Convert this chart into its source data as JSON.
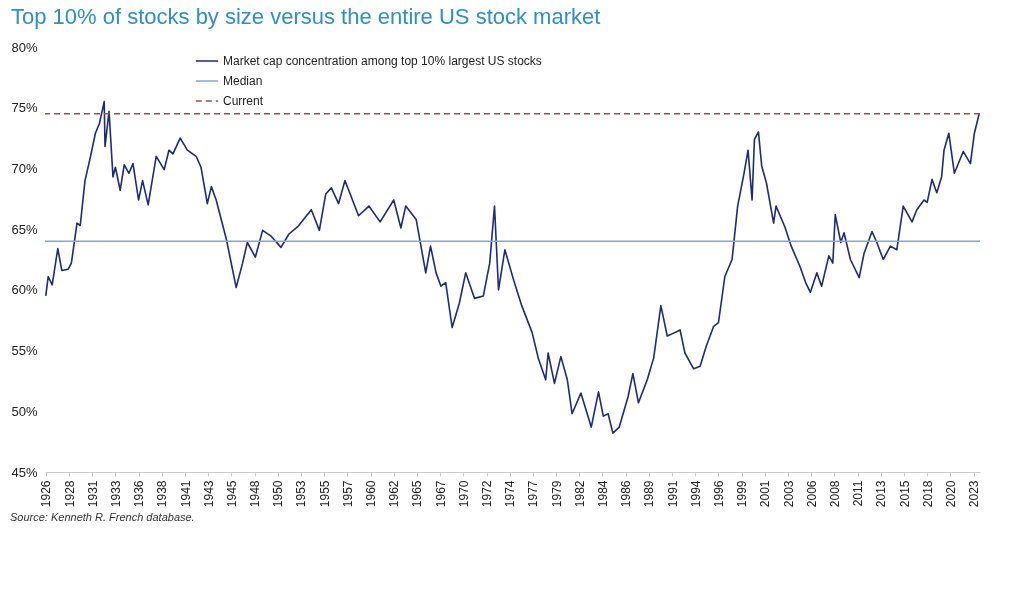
{
  "chart_data": {
    "type": "line",
    "title": "Top 10% of stocks by size versus the entire US stock market",
    "annotations": [
      "Source: Kenneth R. French database."
    ],
    "series": [
      {
        "name": "Market cap concentration among top 10% largest US stocks",
        "color": "#1f2a78",
        "x": [
          "1926-07",
          "1926-10",
          "1927-03",
          "1927-10",
          "1928-03",
          "1928-11",
          "1929-03",
          "1929-10",
          "1930-02",
          "1930-08",
          "1931-03",
          "1931-09",
          "1932-02",
          "1932-08",
          "1932-09",
          "1933-02",
          "1933-07",
          "1933-10",
          "1934-04",
          "1934-09",
          "1935-03",
          "1935-08",
          "1936-03",
          "1936-08",
          "1937-03",
          "1938-01",
          "1938-11",
          "1939-05",
          "1939-10",
          "1940-07",
          "1941-04",
          "1942-03",
          "1942-09",
          "1943-05",
          "1943-10",
          "1944-04",
          "1945-05",
          "1946-05",
          "1947-01",
          "1947-07",
          "1948-05",
          "1949-02",
          "1950-01",
          "1951-01",
          "1951-11",
          "1952-10",
          "1954-03",
          "1955-01",
          "1955-09",
          "1956-04",
          "1957-01",
          "1957-09",
          "1959-02",
          "1960-03",
          "1961-05",
          "1962-10",
          "1963-07",
          "1964-01",
          "1965-02",
          "1966-02",
          "1966-08",
          "1967-03",
          "1967-09",
          "1968-03",
          "1968-11",
          "1969-08",
          "1970-04",
          "1971-03",
          "1972-02",
          "1972-10",
          "1973-04",
          "1973-09",
          "1974-05",
          "1975-04",
          "1976-02",
          "1977-03",
          "1977-11",
          "1978-08",
          "1978-11",
          "1979-07",
          "1980-03",
          "1980-11",
          "1981-05",
          "1982-04",
          "1983-05",
          "1984-02",
          "1984-08",
          "1985-02",
          "1985-08",
          "1986-04",
          "1987-03",
          "1987-09",
          "1988-04",
          "1989-03",
          "1989-11",
          "1990-08",
          "1991-04",
          "1992-02",
          "1992-08",
          "1993-02",
          "1994-01",
          "1994-09",
          "1995-05",
          "1996-02",
          "1996-08",
          "1997-04",
          "1998-01",
          "1998-08",
          "1999-04",
          "1999-09",
          "2000-02",
          "2000-05",
          "2000-10",
          "2001-02",
          "2001-08",
          "2002-05",
          "2002-08",
          "2003-07",
          "2004-03",
          "2005-02",
          "2005-09",
          "2006-03",
          "2006-11",
          "2007-05",
          "2008-02",
          "2008-07",
          "2008-10",
          "2009-05",
          "2009-09",
          "2010-05",
          "2011-04",
          "2011-10",
          "2012-08",
          "2013-02",
          "2013-10",
          "2014-07",
          "2015-03",
          "2015-11",
          "2016-10",
          "2017-04",
          "2018-01",
          "2018-05",
          "2018-11",
          "2019-05",
          "2019-11",
          "2020-02",
          "2020-08",
          "2021-03",
          "2022-02",
          "2022-11",
          "2023-04",
          "2023-10"
        ],
        "values": [
          59.5,
          61.1,
          60.4,
          63.4,
          61.6,
          61.7,
          62.2,
          65.5,
          65.3,
          69.0,
          71.0,
          72.9,
          73.7,
          75.5,
          71.8,
          74.7,
          69.3,
          70.1,
          68.2,
          70.3,
          69.6,
          70.4,
          67.4,
          69.0,
          67.0,
          71.0,
          69.9,
          71.5,
          71.2,
          72.5,
          71.5,
          71.0,
          70.1,
          67.1,
          68.5,
          67.4,
          64.1,
          60.2,
          62.2,
          63.9,
          62.7,
          64.9,
          64.4,
          63.5,
          64.6,
          65.2,
          66.6,
          64.9,
          67.9,
          68.4,
          67.1,
          69.0,
          66.1,
          66.9,
          65.6,
          67.4,
          65.1,
          66.9,
          65.8,
          61.4,
          63.6,
          61.4,
          60.3,
          60.6,
          56.9,
          58.9,
          61.4,
          59.3,
          59.5,
          62.2,
          66.9,
          60.0,
          63.3,
          60.8,
          58.7,
          56.5,
          54.3,
          52.6,
          54.8,
          52.3,
          54.5,
          52.6,
          49.8,
          51.5,
          48.7,
          51.6,
          49.6,
          49.8,
          48.2,
          48.7,
          51.2,
          53.1,
          50.7,
          52.6,
          54.4,
          58.7,
          56.2,
          56.5,
          56.7,
          54.8,
          53.5,
          53.7,
          55.4,
          57.0,
          57.3,
          61.1,
          62.5,
          66.9,
          69.6,
          71.5,
          67.4,
          72.4,
          73.0,
          70.2,
          68.8,
          65.5,
          66.9,
          65.2,
          63.6,
          61.9,
          60.6,
          59.8,
          61.4,
          60.3,
          62.8,
          62.2,
          66.2,
          63.9,
          64.7,
          62.5,
          61.0,
          63.0,
          64.8,
          63.9,
          62.5,
          63.6,
          63.3,
          66.9,
          65.6,
          66.6,
          67.4,
          67.2,
          69.1,
          68.0,
          69.3,
          71.5,
          72.9,
          69.6,
          71.4,
          70.4,
          72.9,
          74.5
        ]
      }
    ],
    "ref_lines": [
      {
        "axis": "y",
        "value": 64,
        "label": "Median",
        "color": "#8ea2d8",
        "line_style": "solid"
      },
      {
        "axis": "y",
        "value": 74.5,
        "label": "Current",
        "color": "#8c5a4c",
        "line_style": "dashed"
      }
    ],
    "xlim": [
      "1926-06",
      "2023-11"
    ],
    "xticks": [
      {
        "value": "1926-07",
        "label": "1926"
      },
      {
        "value": "1928-12",
        "label": "1928"
      },
      {
        "value": "1931-05",
        "label": "1931"
      },
      {
        "value": "1933-10",
        "label": "1933"
      },
      {
        "value": "1936-03",
        "label": "1936"
      },
      {
        "value": "1938-08",
        "label": "1938"
      },
      {
        "value": "1941-01",
        "label": "1941"
      },
      {
        "value": "1943-06",
        "label": "1943"
      },
      {
        "value": "1945-11",
        "label": "1945"
      },
      {
        "value": "1948-04",
        "label": "1948"
      },
      {
        "value": "1950-09",
        "label": "1950"
      },
      {
        "value": "1953-02",
        "label": "1953"
      },
      {
        "value": "1955-07",
        "label": "1955"
      },
      {
        "value": "1957-12",
        "label": "1957"
      },
      {
        "value": "1960-05",
        "label": "1960"
      },
      {
        "value": "1962-10",
        "label": "1962"
      },
      {
        "value": "1965-03",
        "label": "1965"
      },
      {
        "value": "1967-08",
        "label": "1967"
      },
      {
        "value": "1970-01",
        "label": "1970"
      },
      {
        "value": "1972-06",
        "label": "1972"
      },
      {
        "value": "1974-11",
        "label": "1974"
      },
      {
        "value": "1977-04",
        "label": "1977"
      },
      {
        "value": "1979-09",
        "label": "1979"
      },
      {
        "value": "1982-02",
        "label": "1982"
      },
      {
        "value": "1984-07",
        "label": "1984"
      },
      {
        "value": "1986-12",
        "label": "1986"
      },
      {
        "value": "1989-05",
        "label": "1989"
      },
      {
        "value": "1991-10",
        "label": "1991"
      },
      {
        "value": "1994-03",
        "label": "1994"
      },
      {
        "value": "1996-08",
        "label": "1996"
      },
      {
        "value": "1999-01",
        "label": "1999"
      },
      {
        "value": "2001-06",
        "label": "2001"
      },
      {
        "value": "2003-11",
        "label": "2003"
      },
      {
        "value": "2006-04",
        "label": "2006"
      },
      {
        "value": "2008-09",
        "label": "2008"
      },
      {
        "value": "2011-02",
        "label": "2011"
      },
      {
        "value": "2013-07",
        "label": "2013"
      },
      {
        "value": "2015-12",
        "label": "2015"
      },
      {
        "value": "2018-05",
        "label": "2018"
      },
      {
        "value": "2020-10",
        "label": "2020"
      },
      {
        "value": "2023-03",
        "label": "2023"
      }
    ],
    "ylim": [
      45,
      80
    ],
    "yticks": [
      {
        "value": 45,
        "label": "45%"
      },
      {
        "value": 50,
        "label": "50%"
      },
      {
        "value": 55,
        "label": "55%"
      },
      {
        "value": 60,
        "label": "60%"
      },
      {
        "value": 65,
        "label": "65%"
      },
      {
        "value": 70,
        "label": "70%"
      },
      {
        "value": 75,
        "label": "75%"
      },
      {
        "value": 80,
        "label": "80%"
      }
    ],
    "legend": "top left",
    "line_style": "solid"
  }
}
